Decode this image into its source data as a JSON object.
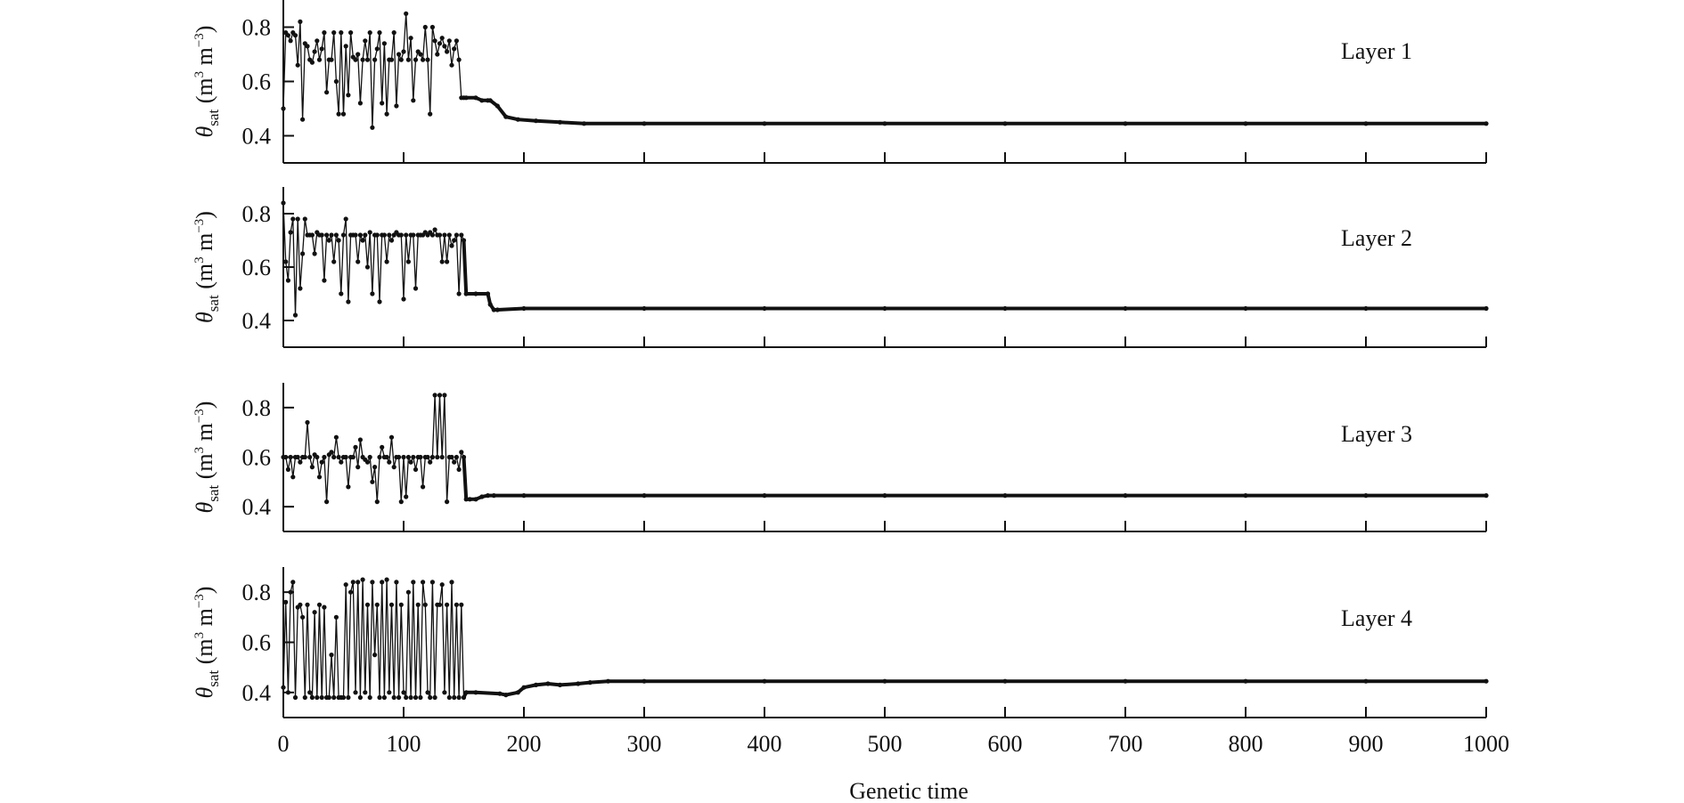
{
  "chart_data": {
    "type": "line",
    "xlabel": "Genetic time",
    "xlim": [
      0,
      1000
    ],
    "xticks": [
      0,
      100,
      200,
      300,
      400,
      500,
      600,
      700,
      800,
      900,
      1000
    ],
    "ylim": [
      0.3,
      0.9
    ],
    "yticks": [
      0.4,
      0.6,
      0.8
    ],
    "ylabel": {
      "symbol": "θ",
      "subscript": "sat",
      "units_open": "(m",
      "sup1": "3",
      "units_mid": " m",
      "sup2": "−3",
      "units_close": ")"
    },
    "grid": false,
    "markers": true,
    "series": [
      {
        "name": "Layer 1",
        "x": [
          0,
          2,
          4,
          6,
          8,
          10,
          12,
          14,
          16,
          18,
          20,
          22,
          24,
          26,
          28,
          30,
          32,
          34,
          36,
          38,
          40,
          42,
          44,
          46,
          48,
          50,
          52,
          54,
          56,
          58,
          60,
          62,
          64,
          66,
          68,
          70,
          72,
          74,
          76,
          78,
          80,
          82,
          84,
          86,
          88,
          90,
          92,
          94,
          96,
          98,
          100,
          102,
          104,
          106,
          108,
          110,
          112,
          114,
          116,
          118,
          120,
          122,
          124,
          126,
          128,
          130,
          132,
          134,
          136,
          138,
          140,
          142,
          144,
          146,
          148,
          150,
          152,
          160,
          165,
          170,
          172,
          178,
          185,
          195,
          210,
          230,
          250,
          300,
          400,
          500,
          600,
          700,
          800,
          900,
          1000
        ],
        "y": [
          0.5,
          0.78,
          0.77,
          0.75,
          0.78,
          0.77,
          0.66,
          0.82,
          0.46,
          0.74,
          0.73,
          0.68,
          0.67,
          0.71,
          0.75,
          0.68,
          0.72,
          0.78,
          0.56,
          0.68,
          0.68,
          0.78,
          0.6,
          0.48,
          0.78,
          0.48,
          0.73,
          0.55,
          0.78,
          0.69,
          0.68,
          0.7,
          0.52,
          0.68,
          0.75,
          0.68,
          0.78,
          0.43,
          0.68,
          0.72,
          0.78,
          0.52,
          0.74,
          0.48,
          0.68,
          0.68,
          0.78,
          0.51,
          0.7,
          0.68,
          0.71,
          0.85,
          0.68,
          0.76,
          0.53,
          0.68,
          0.71,
          0.7,
          0.68,
          0.8,
          0.68,
          0.48,
          0.8,
          0.75,
          0.7,
          0.74,
          0.76,
          0.73,
          0.71,
          0.75,
          0.66,
          0.72,
          0.75,
          0.68,
          0.54,
          0.54,
          0.54,
          0.54,
          0.53,
          0.53,
          0.53,
          0.51,
          0.47,
          0.46,
          0.455,
          0.45,
          0.445,
          0.445,
          0.445,
          0.445,
          0.445,
          0.445,
          0.445,
          0.445,
          0.445
        ]
      },
      {
        "name": "Layer 2",
        "x": [
          0,
          2,
          4,
          6,
          8,
          10,
          12,
          14,
          16,
          18,
          20,
          22,
          24,
          26,
          28,
          30,
          32,
          34,
          36,
          38,
          40,
          42,
          44,
          46,
          48,
          50,
          52,
          54,
          56,
          58,
          60,
          62,
          64,
          66,
          68,
          70,
          72,
          74,
          76,
          78,
          80,
          82,
          84,
          86,
          88,
          90,
          92,
          94,
          96,
          98,
          100,
          102,
          104,
          106,
          108,
          110,
          112,
          114,
          116,
          118,
          120,
          122,
          124,
          126,
          128,
          130,
          132,
          134,
          136,
          138,
          140,
          142,
          144,
          146,
          148,
          150,
          152,
          160,
          170,
          172,
          175,
          178,
          200,
          300,
          400,
          500,
          600,
          700,
          800,
          900,
          1000
        ],
        "y": [
          0.84,
          0.62,
          0.55,
          0.73,
          0.78,
          0.42,
          0.78,
          0.52,
          0.65,
          0.78,
          0.72,
          0.72,
          0.72,
          0.65,
          0.73,
          0.72,
          0.72,
          0.55,
          0.72,
          0.7,
          0.72,
          0.62,
          0.72,
          0.7,
          0.5,
          0.72,
          0.78,
          0.47,
          0.72,
          0.72,
          0.72,
          0.62,
          0.72,
          0.7,
          0.72,
          0.6,
          0.73,
          0.5,
          0.72,
          0.72,
          0.47,
          0.72,
          0.72,
          0.62,
          0.72,
          0.7,
          0.72,
          0.73,
          0.72,
          0.72,
          0.48,
          0.72,
          0.62,
          0.72,
          0.72,
          0.52,
          0.72,
          0.72,
          0.72,
          0.73,
          0.72,
          0.73,
          0.72,
          0.74,
          0.72,
          0.72,
          0.62,
          0.72,
          0.62,
          0.72,
          0.68,
          0.7,
          0.72,
          0.5,
          0.72,
          0.7,
          0.5,
          0.5,
          0.5,
          0.46,
          0.44,
          0.44,
          0.445,
          0.445,
          0.445,
          0.445,
          0.445,
          0.445,
          0.445,
          0.445,
          0.445
        ]
      },
      {
        "name": "Layer 3",
        "x": [
          0,
          2,
          4,
          6,
          8,
          10,
          12,
          14,
          16,
          18,
          20,
          22,
          24,
          26,
          28,
          30,
          32,
          34,
          36,
          38,
          40,
          42,
          44,
          46,
          48,
          50,
          52,
          54,
          56,
          58,
          60,
          62,
          64,
          66,
          68,
          70,
          72,
          74,
          76,
          78,
          80,
          82,
          84,
          86,
          88,
          90,
          92,
          94,
          96,
          98,
          100,
          102,
          104,
          106,
          108,
          110,
          112,
          114,
          116,
          118,
          120,
          122,
          124,
          126,
          128,
          130,
          132,
          134,
          136,
          138,
          140,
          142,
          144,
          146,
          148,
          150,
          152,
          155,
          160,
          165,
          170,
          175,
          200,
          300,
          400,
          500,
          600,
          700,
          800,
          900,
          1000
        ],
        "y": [
          0.6,
          0.6,
          0.55,
          0.6,
          0.52,
          0.6,
          0.6,
          0.58,
          0.6,
          0.6,
          0.74,
          0.6,
          0.56,
          0.61,
          0.6,
          0.52,
          0.58,
          0.6,
          0.42,
          0.61,
          0.62,
          0.6,
          0.68,
          0.6,
          0.58,
          0.6,
          0.6,
          0.48,
          0.6,
          0.6,
          0.64,
          0.56,
          0.67,
          0.6,
          0.59,
          0.58,
          0.6,
          0.5,
          0.56,
          0.42,
          0.6,
          0.64,
          0.6,
          0.6,
          0.58,
          0.68,
          0.56,
          0.6,
          0.6,
          0.42,
          0.6,
          0.44,
          0.6,
          0.58,
          0.6,
          0.55,
          0.6,
          0.6,
          0.48,
          0.6,
          0.6,
          0.58,
          0.6,
          0.85,
          0.6,
          0.85,
          0.6,
          0.85,
          0.42,
          0.6,
          0.6,
          0.58,
          0.6,
          0.55,
          0.62,
          0.6,
          0.43,
          0.43,
          0.43,
          0.44,
          0.445,
          0.445,
          0.445,
          0.445,
          0.445,
          0.445,
          0.445,
          0.445,
          0.445,
          0.445,
          0.445
        ]
      },
      {
        "name": "Layer 4",
        "x": [
          0,
          2,
          4,
          6,
          8,
          10,
          12,
          14,
          16,
          18,
          20,
          22,
          24,
          26,
          28,
          30,
          32,
          34,
          36,
          38,
          40,
          42,
          44,
          46,
          48,
          50,
          52,
          54,
          56,
          58,
          60,
          62,
          64,
          66,
          68,
          70,
          72,
          74,
          76,
          78,
          80,
          82,
          84,
          86,
          88,
          90,
          92,
          94,
          96,
          98,
          100,
          102,
          104,
          106,
          108,
          110,
          112,
          114,
          116,
          118,
          120,
          122,
          124,
          126,
          128,
          130,
          132,
          134,
          136,
          138,
          140,
          142,
          144,
          146,
          148,
          150,
          152,
          160,
          180,
          185,
          195,
          200,
          210,
          220,
          230,
          245,
          255,
          270,
          300,
          400,
          500,
          600,
          700,
          800,
          900,
          1000
        ],
        "y": [
          0.42,
          0.76,
          0.4,
          0.8,
          0.84,
          0.38,
          0.74,
          0.75,
          0.7,
          0.38,
          0.75,
          0.4,
          0.38,
          0.72,
          0.38,
          0.75,
          0.38,
          0.74,
          0.38,
          0.38,
          0.55,
          0.38,
          0.7,
          0.38,
          0.38,
          0.38,
          0.83,
          0.38,
          0.8,
          0.84,
          0.4,
          0.84,
          0.38,
          0.85,
          0.4,
          0.75,
          0.38,
          0.84,
          0.55,
          0.75,
          0.38,
          0.84,
          0.38,
          0.85,
          0.4,
          0.75,
          0.38,
          0.84,
          0.38,
          0.75,
          0.4,
          0.38,
          0.8,
          0.38,
          0.84,
          0.38,
          0.75,
          0.38,
          0.84,
          0.75,
          0.4,
          0.38,
          0.84,
          0.38,
          0.75,
          0.75,
          0.83,
          0.4,
          0.75,
          0.38,
          0.84,
          0.38,
          0.75,
          0.38,
          0.75,
          0.38,
          0.4,
          0.4,
          0.395,
          0.39,
          0.4,
          0.42,
          0.43,
          0.435,
          0.43,
          0.435,
          0.44,
          0.445,
          0.445,
          0.445,
          0.445,
          0.445,
          0.445,
          0.445,
          0.445,
          0.445
        ]
      }
    ]
  }
}
